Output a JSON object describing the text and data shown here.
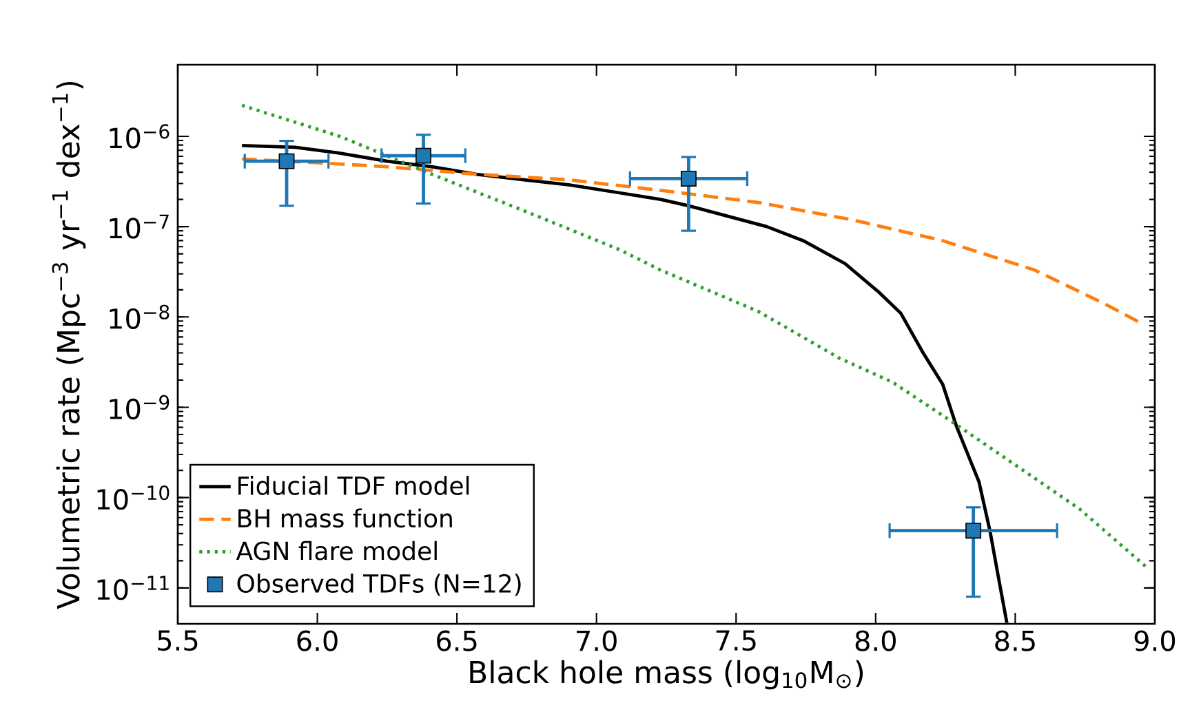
{
  "chart_data": {
    "type": "line",
    "xlabel": "Black hole mass (log$_{10}$M$_{⊙}$)",
    "ylabel": "Volumetric rate (Mpc$^{−3}$ yr$^{−1}$ dex$^{−1}$)",
    "log": "y",
    "xlim": [
      5.5,
      9.0
    ],
    "ylim": [
      4e-12,
      6.2e-06
    ],
    "xticks": [
      {
        "value": 5.5,
        "label": "5.5"
      },
      {
        "value": 6.0,
        "label": "6.0"
      },
      {
        "value": 6.5,
        "label": "6.5"
      },
      {
        "value": 7.0,
        "label": "7.0"
      },
      {
        "value": 7.5,
        "label": "7.5"
      },
      {
        "value": 8.0,
        "label": "8.0"
      },
      {
        "value": 8.5,
        "label": "8.5"
      },
      {
        "value": 9.0,
        "label": "9.0"
      }
    ],
    "yticks": [
      {
        "value": 1e-11,
        "label": "10$^{−11}$"
      },
      {
        "value": 1e-10,
        "label": "10$^{−10}$"
      },
      {
        "value": 1e-09,
        "label": "10$^{−9}$"
      },
      {
        "value": 1e-08,
        "label": "10$^{−8}$"
      },
      {
        "value": 1e-07,
        "label": "10$^{−7}$"
      },
      {
        "value": 1e-06,
        "label": "10$^{−6}$"
      }
    ],
    "grid": false,
    "legend": "bottom left",
    "series": [
      {
        "name": "Fiducial TDF model",
        "color": "#000000",
        "line_style": "solid",
        "marker": "none",
        "x": [
          5.73,
          5.92,
          6.08,
          6.25,
          6.41,
          6.57,
          6.74,
          6.9,
          7.07,
          7.23,
          7.33,
          7.61,
          7.74,
          7.89,
          8.01,
          8.09,
          8.17,
          8.24,
          8.29,
          8.37,
          8.41,
          8.44,
          8.47
        ],
        "values": [
          7.9e-07,
          7.55e-07,
          6.5e-07,
          5.3e-07,
          4.6e-07,
          3.8e-07,
          3.3e-07,
          2.9e-07,
          2.4e-07,
          2e-07,
          1.7e-07,
          1e-07,
          7e-08,
          3.9e-08,
          1.9e-08,
          1.1e-08,
          4e-09,
          1.8e-09,
          6.1e-10,
          1.5e-10,
          4.2e-11,
          1.3e-11,
          4.1e-12
        ]
      },
      {
        "name": "BH mass function",
        "color": "#ff7f0e",
        "line_style": "dashed",
        "marker": "none",
        "x": [
          5.73,
          6.0,
          6.25,
          6.57,
          6.9,
          7.24,
          7.58,
          7.91,
          8.24,
          8.57,
          8.81,
          8.94
        ],
        "values": [
          5.6e-07,
          5.1e-07,
          4.6e-07,
          3.8e-07,
          3.3e-07,
          2.5e-07,
          1.85e-07,
          1.2e-07,
          7e-08,
          3.3e-08,
          1.45e-08,
          8.9e-09
        ]
      },
      {
        "name": "AGN flare model",
        "color": "#2ca02c",
        "line_style": "dotted",
        "marker": "none",
        "x": [
          5.73,
          6.08,
          6.41,
          6.74,
          7.08,
          7.23,
          7.58,
          7.87,
          8.06,
          8.3,
          8.73,
          8.97
        ],
        "values": [
          2.2e-06,
          1e-06,
          3.8e-07,
          1.5e-07,
          5.6e-08,
          3.3e-08,
          1.15e-08,
          3.5e-09,
          1.9e-09,
          6.1e-10,
          7.5e-11,
          1.7e-11
        ]
      },
      {
        "name": "Observed TDFs (N=12)",
        "type": "scatter",
        "color": "#1f77b4",
        "marker": "square",
        "x": [
          5.89,
          6.38,
          7.33,
          8.35
        ],
        "values": [
          5.3e-07,
          6.1e-07,
          3.4e-07,
          4.3e-11
        ],
        "errors": [
          3.6e-07,
          4.3e-07,
          2.5e-07,
          3.5e-11
        ],
        "xerrors": [
          0.15,
          0.15,
          0.21,
          0.3
        ]
      }
    ]
  }
}
